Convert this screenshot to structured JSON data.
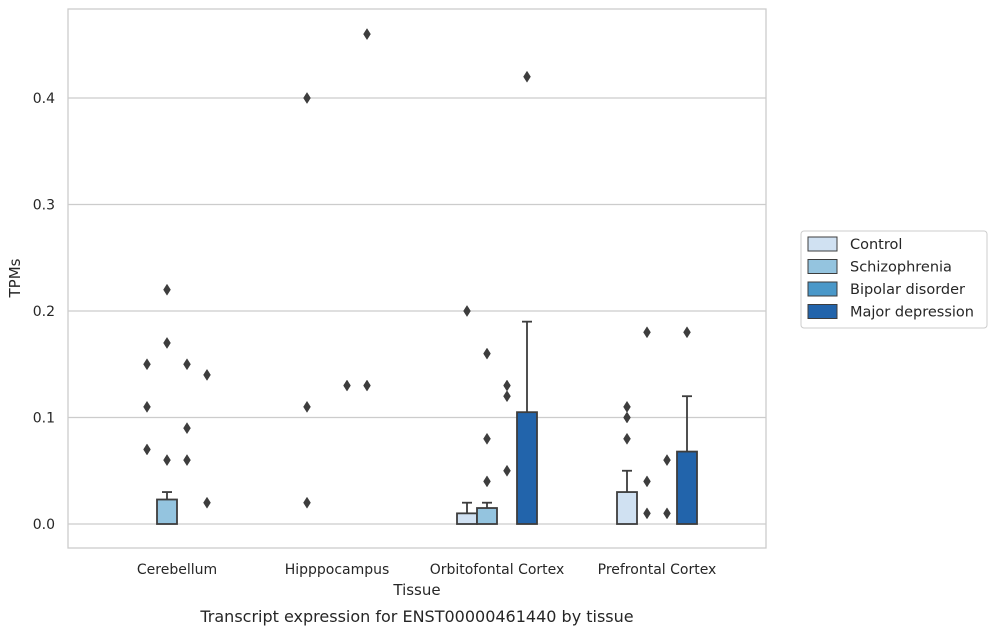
{
  "chart_data": {
    "type": "bar",
    "title": "",
    "caption": "Transcript expression for ENST00000461440 by tissue",
    "xlabel": "Tissue",
    "ylabel": "TPMs",
    "ylim": [
      -0.022,
      0.485
    ],
    "yticks": [
      "0.0",
      "0.1",
      "0.2",
      "0.3",
      "0.4"
    ],
    "grid": "horizontal",
    "legend_position": "right",
    "categories": [
      "Cerebellum",
      "Hipppocampus",
      "Orbitofontal Cortex",
      "Prefrontal Cortex"
    ],
    "series": [
      {
        "name": "Control",
        "color": "#d0e1f2",
        "values": [
          0.0,
          0.0,
          0.01,
          0.03
        ],
        "error_upper": [
          null,
          null,
          0.02,
          0.05
        ]
      },
      {
        "name": "Schizophrenia",
        "color": "#94c4df",
        "values": [
          0.023,
          0.0,
          0.015,
          0.0
        ],
        "error_upper": [
          0.03,
          null,
          0.02,
          null
        ]
      },
      {
        "name": "Bipolar disorder",
        "color": "#4a98c9",
        "values": [
          0.0,
          0.0,
          0.0,
          0.0
        ],
        "error_upper": [
          null,
          null,
          null,
          null
        ]
      },
      {
        "name": "Major depression",
        "color": "#2264ab",
        "values": [
          0.0,
          0.0,
          0.105,
          0.068
        ],
        "error_upper": [
          null,
          null,
          0.19,
          0.12
        ]
      }
    ],
    "outliers": [
      {
        "category": 0,
        "series": 0,
        "values": [
          0.15,
          0.11,
          0.07
        ]
      },
      {
        "category": 0,
        "series": 1,
        "values": [
          0.22,
          0.17,
          0.06
        ]
      },
      {
        "category": 0,
        "series": 2,
        "values": [
          0.15,
          0.09,
          0.06
        ]
      },
      {
        "category": 0,
        "series": 3,
        "values": [
          0.14,
          0.02
        ]
      },
      {
        "category": 1,
        "series": 0,
        "values": [
          0.4,
          0.11,
          0.02
        ]
      },
      {
        "category": 1,
        "series": 2,
        "values": [
          0.13
        ]
      },
      {
        "category": 1,
        "series": 3,
        "values": [
          0.46,
          0.13
        ]
      },
      {
        "category": 2,
        "series": 0,
        "values": [
          0.2
        ]
      },
      {
        "category": 2,
        "series": 1,
        "values": [
          0.16,
          0.08,
          0.04
        ]
      },
      {
        "category": 2,
        "series": 2,
        "values": [
          0.13,
          0.12,
          0.05
        ]
      },
      {
        "category": 2,
        "series": 3,
        "values": [
          0.42
        ]
      },
      {
        "category": 3,
        "series": 0,
        "values": [
          0.11,
          0.1,
          0.08
        ]
      },
      {
        "category": 3,
        "series": 1,
        "values": [
          0.18,
          0.04,
          0.01
        ]
      },
      {
        "category": 3,
        "series": 2,
        "values": [
          0.06,
          0.01
        ]
      },
      {
        "category": 3,
        "series": 3,
        "values": [
          0.18
        ]
      }
    ]
  }
}
